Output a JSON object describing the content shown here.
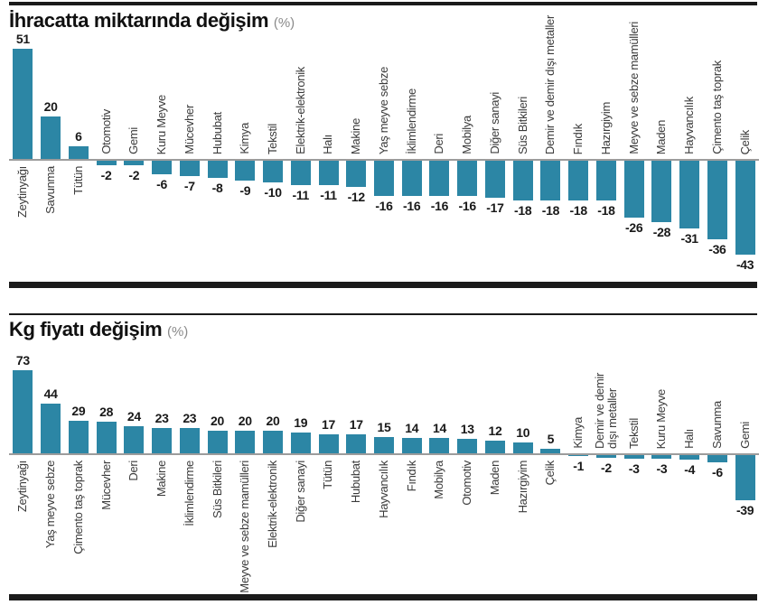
{
  "colors": {
    "bar": "#2c86a5",
    "axis_line": "#9c9c9c",
    "rule": "#1b1b1b",
    "value_label": "#191919",
    "category_label": "#3b3b3b",
    "unit_label": "#8a8a8a"
  },
  "chart_data": [
    {
      "type": "bar",
      "title": "İhracatta miktarında değişim",
      "unit": "(%)",
      "xlabel": "",
      "ylabel": "",
      "grid": false,
      "legend": "none",
      "ylim": [
        -43,
        51
      ],
      "categories": [
        "Zeytinyağı",
        "Savunma",
        "Tütün",
        "Otomotiv",
        "Gemi",
        "Kuru Meyve",
        "Mücevher",
        "Hububat",
        "Kimya",
        "Tekstil",
        "Elektrik-elektronik",
        "Halı",
        "Makine",
        "Yaş meyve sebze",
        "İklimlendirme",
        "Deri",
        "Mobilya",
        "Diğer sanayi",
        "Süs Bitkileri",
        "Demir ve demir dışı metaller",
        "Fındık",
        "Hazırgiyim",
        "Meyve ve sebze mamülleri",
        "Maden",
        "Hayvancılık",
        "Çimento taş toprak",
        "Çelik"
      ],
      "values": [
        51,
        20,
        6,
        -2,
        -2,
        -6,
        -7,
        -8,
        -9,
        -10,
        -11,
        -11,
        -12,
        -16,
        -16,
        -16,
        -16,
        -17,
        -18,
        -18,
        -18,
        -18,
        -26,
        -28,
        -31,
        -36,
        -43
      ]
    },
    {
      "type": "bar",
      "title": "Kg fiyatı değişim",
      "unit": "(%)",
      "xlabel": "",
      "ylabel": "",
      "grid": false,
      "legend": "none",
      "ylim": [
        -39,
        73
      ],
      "categories": [
        "Zeytinyağı",
        "Yaş meyve sebze",
        "Çimento taş toprak",
        "Mücevher",
        "Deri",
        "Makine",
        "İklimlendirme",
        "Süs Bitkileri",
        "Meyve ve sebze mamülleri",
        "Elektrik-elektronik",
        "Diğer sanayi",
        "Tütün",
        "Hububat",
        "Hayvancılık",
        "Fındık",
        "Mobilya",
        "Otomotiv",
        "Maden",
        "Hazırgiyim",
        "Çelik",
        "Kimya",
        "Demir ve demir\ndışı metaller",
        "Tekstil",
        "Kuru Meyve",
        "Halı",
        "Savunma",
        "Gemi"
      ],
      "values": [
        73,
        44,
        29,
        28,
        24,
        23,
        23,
        20,
        20,
        20,
        19,
        17,
        17,
        15,
        14,
        14,
        13,
        12,
        10,
        5,
        -1,
        -2,
        -3,
        -3,
        -4,
        -6,
        -39
      ]
    }
  ]
}
